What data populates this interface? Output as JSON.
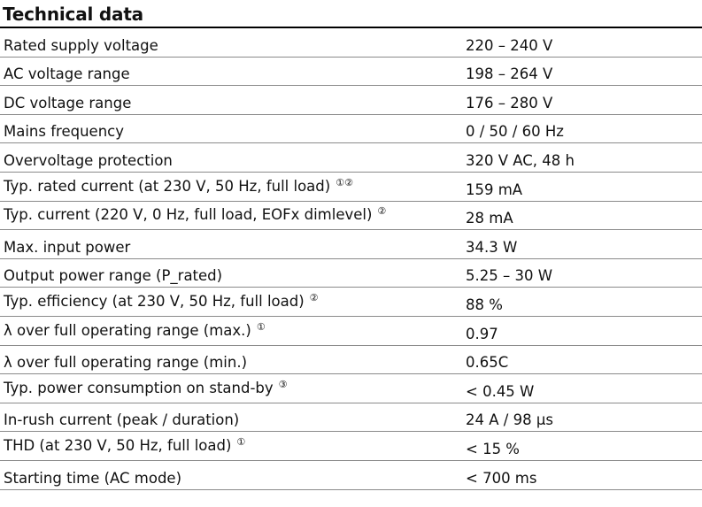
{
  "title": "Technical data",
  "rows": [
    {
      "label": "Rated supply voltage",
      "note": "",
      "value": "220 – 240 V"
    },
    {
      "label": "AC voltage range",
      "note": "",
      "value": "198 – 264 V"
    },
    {
      "label": "DC voltage range",
      "note": "",
      "value": "176 – 280 V"
    },
    {
      "label": "Mains frequency",
      "note": "",
      "value": "0 / 50 / 60 Hz"
    },
    {
      "label": "Overvoltage protection",
      "note": "",
      "value": "320 V AC, 48 h"
    },
    {
      "label": "Typ. rated current (at 230 V, 50 Hz, full load)",
      "note": "①②",
      "value": "159 mA"
    },
    {
      "label": "Typ. current (220 V, 0 Hz, full load, EOFx dimlevel)",
      "note": "②",
      "value": "28 mA"
    },
    {
      "label": "Max. input power",
      "note": "",
      "value": "34.3 W"
    },
    {
      "label": "Output power range (P_rated)",
      "note": "",
      "value": "5.25 – 30 W"
    },
    {
      "label": "Typ. efficiency (at 230 V, 50 Hz, full load)",
      "note": "②",
      "value": "88 %"
    },
    {
      "label": "λ over full operating range (max.)",
      "note": "①",
      "value": "0.97"
    },
    {
      "label": "λ over full operating range (min.)",
      "note": "",
      "value": "0.65C"
    },
    {
      "label": "Typ. power consumption on stand-by",
      "note": "③",
      "value": "< 0.45 W"
    },
    {
      "label": "In-rush current (peak / duration)",
      "note": "",
      "value": "24 A / 98 µs"
    },
    {
      "label": "THD (at 230 V, 50 Hz, full load)",
      "note": "①",
      "value": "< 15 %"
    },
    {
      "label": "Starting time (AC mode)",
      "note": "",
      "value": "< 700 ms"
    }
  ]
}
